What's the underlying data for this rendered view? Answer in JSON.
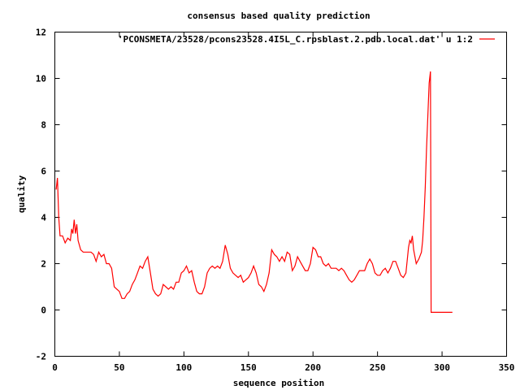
{
  "chart_data": {
    "type": "line",
    "title": "consensus based quality prediction",
    "xlabel": "sequence position",
    "ylabel": "quality",
    "xlim": [
      0,
      350
    ],
    "ylim": [
      -2,
      12
    ],
    "xticks": [
      0,
      50,
      100,
      150,
      200,
      250,
      300,
      350
    ],
    "yticks": [
      -2,
      0,
      2,
      4,
      6,
      8,
      10,
      12
    ],
    "grid": false,
    "legend_position": "top-right",
    "series": [
      {
        "name": "'PCONSMETA/23528/pcons23528.4I5L_C.rpsblast.2.pdb.local.dat' u 1:2",
        "color": "#ff0000",
        "x": [
          1,
          2,
          3,
          4,
          6,
          8,
          10,
          12,
          13,
          14,
          15,
          16,
          17,
          18,
          20,
          22,
          25,
          28,
          30,
          32,
          34,
          36,
          38,
          40,
          42,
          44,
          46,
          48,
          50,
          52,
          54,
          56,
          58,
          60,
          62,
          64,
          66,
          68,
          70,
          72,
          74,
          76,
          78,
          80,
          82,
          84,
          86,
          88,
          90,
          92,
          94,
          96,
          98,
          100,
          102,
          104,
          106,
          108,
          110,
          112,
          114,
          116,
          118,
          120,
          122,
          124,
          126,
          128,
          130,
          132,
          134,
          136,
          138,
          140,
          142,
          144,
          146,
          148,
          150,
          152,
          154,
          156,
          158,
          160,
          162,
          164,
          166,
          168,
          170,
          172,
          174,
          176,
          178,
          180,
          182,
          184,
          186,
          188,
          190,
          192,
          194,
          196,
          198,
          200,
          202,
          204,
          206,
          208,
          210,
          212,
          214,
          216,
          218,
          220,
          222,
          224,
          226,
          228,
          230,
          232,
          234,
          236,
          238,
          240,
          242,
          244,
          246,
          248,
          250,
          252,
          254,
          256,
          258,
          260,
          262,
          264,
          266,
          268,
          270,
          272,
          274,
          275,
          276,
          277,
          278,
          280,
          282,
          284,
          285,
          286,
          287,
          288,
          289,
          290,
          291,
          291.5,
          292,
          300,
          308
        ],
        "y": [
          5.2,
          5.7,
          4.0,
          3.2,
          3.2,
          2.9,
          3.1,
          3.0,
          3.5,
          3.3,
          3.9,
          3.3,
          3.7,
          3.0,
          2.6,
          2.5,
          2.5,
          2.5,
          2.4,
          2.1,
          2.5,
          2.3,
          2.4,
          2.0,
          2.0,
          1.8,
          1.0,
          0.9,
          0.8,
          0.5,
          0.5,
          0.7,
          0.8,
          1.1,
          1.3,
          1.6,
          1.9,
          1.8,
          2.1,
          2.3,
          1.6,
          0.9,
          0.7,
          0.6,
          0.7,
          1.1,
          1.0,
          0.9,
          1.0,
          0.9,
          1.2,
          1.2,
          1.6,
          1.7,
          1.9,
          1.6,
          1.7,
          1.2,
          0.8,
          0.7,
          0.7,
          1.0,
          1.6,
          1.8,
          1.9,
          1.8,
          1.9,
          1.8,
          2.1,
          2.8,
          2.4,
          1.8,
          1.6,
          1.5,
          1.4,
          1.5,
          1.2,
          1.3,
          1.4,
          1.6,
          1.9,
          1.6,
          1.1,
          1.0,
          0.8,
          1.1,
          1.6,
          2.6,
          2.4,
          2.3,
          2.1,
          2.3,
          2.1,
          2.5,
          2.4,
          1.7,
          1.9,
          2.3,
          2.1,
          1.9,
          1.7,
          1.7,
          2.0,
          2.7,
          2.6,
          2.3,
          2.3,
          2.0,
          1.9,
          2.0,
          1.8,
          1.8,
          1.8,
          1.7,
          1.8,
          1.7,
          1.5,
          1.3,
          1.2,
          1.3,
          1.5,
          1.7,
          1.7,
          1.7,
          2.0,
          2.2,
          2.0,
          1.6,
          1.5,
          1.5,
          1.7,
          1.8,
          1.6,
          1.8,
          2.1,
          2.1,
          1.8,
          1.5,
          1.4,
          1.6,
          2.7,
          3.0,
          2.9,
          3.2,
          2.6,
          2.0,
          2.2,
          2.5,
          3.0,
          4.0,
          5.3,
          7.0,
          8.4,
          9.8,
          10.3,
          -0.1,
          -0.1,
          -0.1,
          -0.1
        ]
      }
    ]
  }
}
